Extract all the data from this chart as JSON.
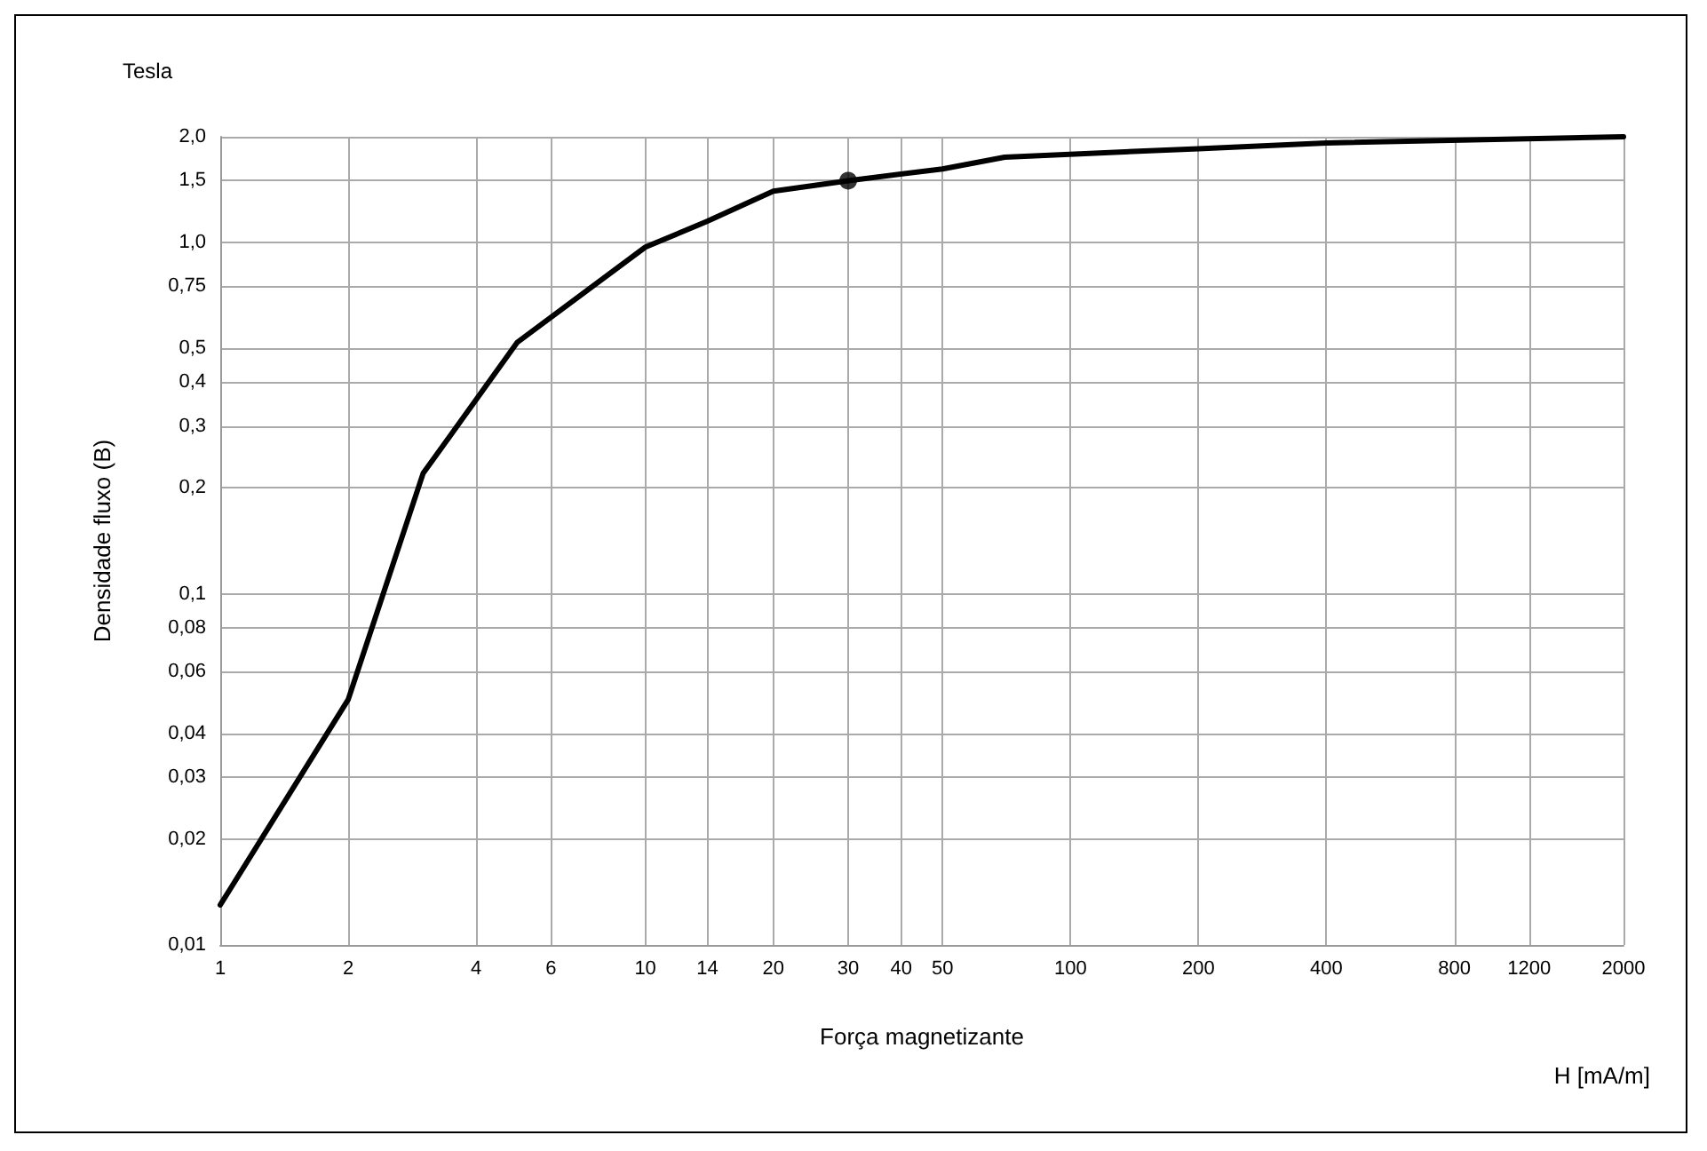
{
  "chart_data": {
    "type": "line",
    "xlabel": "Força magnetizante",
    "ylabel": "Densidade fluxo (B)",
    "annotations": [
      "Tesla",
      "H [mA/m]"
    ],
    "log": "xy",
    "grid": true,
    "xlim": [
      1,
      2000
    ],
    "ylim": [
      0.01,
      2.0
    ],
    "xticks": [
      1,
      2,
      4,
      6,
      10,
      14,
      20,
      30,
      40,
      50,
      100,
      200,
      400,
      800,
      1200,
      2000
    ],
    "yticks": [
      {
        "value": 0.01,
        "label": "0,01"
      },
      {
        "value": 0.02,
        "label": "0,02"
      },
      {
        "value": 0.03,
        "label": "0,03"
      },
      {
        "value": 0.04,
        "label": "0,04"
      },
      {
        "value": 0.06,
        "label": "0,06"
      },
      {
        "value": 0.08,
        "label": "0,08"
      },
      {
        "value": 0.1,
        "label": "0,1"
      },
      {
        "value": 0.2,
        "label": "0,2"
      },
      {
        "value": 0.3,
        "label": "0,3"
      },
      {
        "value": 0.4,
        "label": "0,4"
      },
      {
        "value": 0.5,
        "label": "0,5"
      },
      {
        "value": 0.75,
        "label": "0,75"
      },
      {
        "value": 1.0,
        "label": "1,0"
      },
      {
        "value": 1.5,
        "label": "1,5"
      },
      {
        "value": 2.0,
        "label": "2,0"
      }
    ],
    "series": [
      {
        "color": "#000000",
        "marker": "none",
        "line_style": "solid",
        "x": [
          1,
          2,
          3,
          5,
          10,
          14,
          20,
          30,
          50,
          70,
          200,
          400,
          2000
        ],
        "values": [
          0.013,
          0.05,
          0.22,
          0.52,
          0.97,
          1.15,
          1.4,
          1.5,
          1.62,
          1.75,
          1.85,
          1.92,
          2.0
        ]
      },
      {
        "type": "scatter",
        "color": "#000000",
        "marker": "circle",
        "x": [
          30
        ],
        "values": [
          1.5
        ]
      }
    ]
  }
}
